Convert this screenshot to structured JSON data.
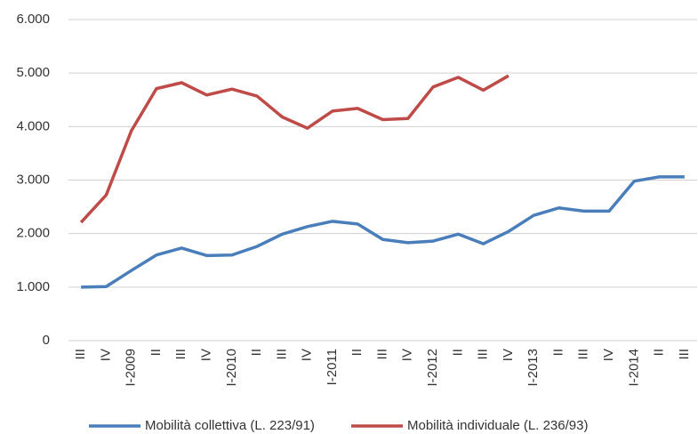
{
  "chart_data": {
    "type": "line",
    "categories": [
      "III",
      "IV",
      "I-2009",
      "II",
      "III",
      "IV",
      "I-2010",
      "II",
      "III",
      "IV",
      "I-2011",
      "II",
      "III",
      "IV",
      "I-2012",
      "II",
      "III",
      "IV",
      "I-2013",
      "II",
      "III",
      "IV",
      "I-2014",
      "II",
      "III"
    ],
    "series": [
      {
        "name": "Mobilità collettiva (L. 223/91)",
        "color": "#4a7ebb",
        "values": [
          1000,
          1010,
          1310,
          1600,
          1730,
          1590,
          1600,
          1760,
          1990,
          2130,
          2230,
          2180,
          1890,
          1830,
          1860,
          1990,
          1810,
          2040,
          2340,
          2480,
          2420,
          2420,
          2980,
          3060,
          3060
        ]
      },
      {
        "name": "Mobilità individuale (L. 236/93)",
        "color": "#be4b48",
        "values": [
          2210,
          2720,
          3920,
          4710,
          4820,
          4590,
          4700,
          4570,
          4180,
          3970,
          4290,
          4340,
          4130,
          4150,
          4740,
          4920,
          4680,
          4950,
          null,
          null,
          null,
          null,
          null,
          null,
          null
        ]
      }
    ],
    "ylim": [
      0,
      6000
    ],
    "yticks": [
      0,
      {
        "value": 1000,
        "label": "1.000"
      },
      {
        "value": 2000,
        "label": "2.000"
      },
      {
        "value": 3000,
        "label": "3.000"
      },
      {
        "value": 4000,
        "label": "4.000"
      },
      {
        "value": 5000,
        "label": "5.000"
      },
      {
        "value": 6000,
        "label": "6.000"
      }
    ],
    "grid": true,
    "legend": "bottom"
  }
}
